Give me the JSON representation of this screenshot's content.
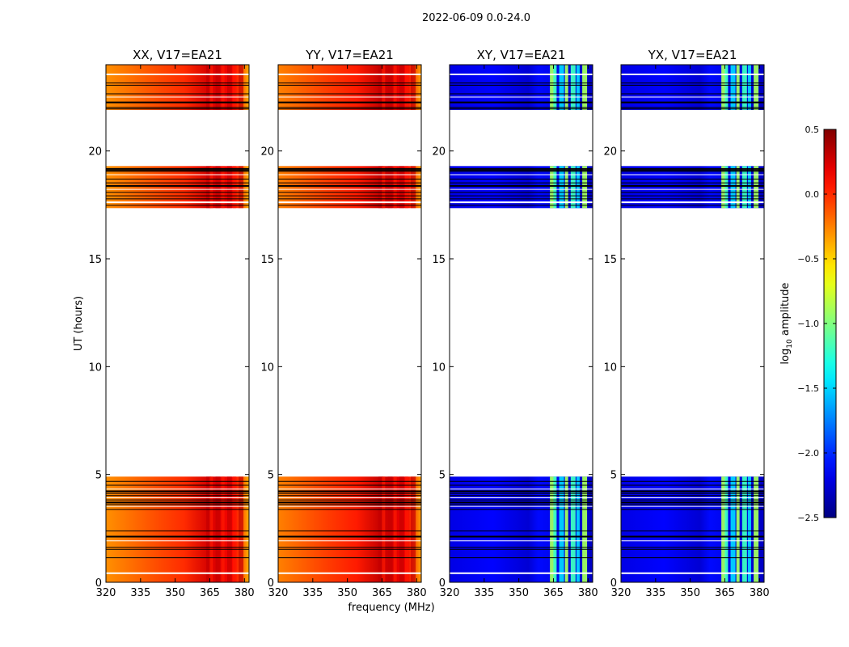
{
  "chart_data": {
    "type": "heatmap",
    "suptitle": "2022-06-09 0.0-24.0",
    "xlabel": "frequency (MHz)",
    "ylabel": "UT (hours)",
    "xlim": [
      320,
      382
    ],
    "ylim": [
      0,
      24
    ],
    "xticks": [
      320,
      335,
      350,
      365,
      380
    ],
    "yticks": [
      0,
      5,
      10,
      15,
      20
    ],
    "panels": [
      {
        "title": "XX, V17=EA21",
        "kind": "parallel",
        "level": 0.05
      },
      {
        "title": "YY, V17=EA21",
        "kind": "parallel",
        "level": 0.1
      },
      {
        "title": "XY, V17=EA21",
        "kind": "cross",
        "level": -2.2
      },
      {
        "title": "YX, V17=EA21",
        "kind": "cross",
        "level": -2.2
      }
    ],
    "data_bands_hours": [
      [
        0.0,
        4.9
      ],
      [
        17.35,
        19.3
      ],
      [
        21.9,
        24.0
      ]
    ],
    "gap_lines_hours": [
      0.42,
      1.14,
      1.53,
      1.62,
      1.92,
      2.12,
      2.38,
      3.38,
      3.52,
      3.6,
      3.7,
      3.82,
      3.92,
      4.02,
      4.12,
      4.22,
      4.32,
      4.5,
      4.68,
      17.48,
      17.62,
      17.78,
      17.92,
      18.08,
      18.22,
      18.38,
      18.52,
      18.7,
      18.9,
      19.05,
      19.12,
      19.18,
      21.15,
      21.95,
      22.02,
      22.25,
      22.5,
      22.65,
      23.05,
      23.15,
      23.55
    ],
    "rfi_columns_mhz": [
      364,
      365.5,
      368,
      370.5,
      373,
      375.5,
      378
    ],
    "colorbar": {
      "label": "log10 amplitude",
      "label_main": "log",
      "label_sub": "10",
      "label_tail": " amplitude",
      "vmin": -2.5,
      "vmax": 0.5,
      "ticks": [
        0.5,
        0.0,
        -0.5,
        -1.0,
        -1.5,
        -2.0,
        -2.5
      ],
      "tick_labels": [
        "0.5",
        "0.0",
        "−0.5",
        "−1.0",
        "−1.5",
        "−2.0",
        "−2.5"
      ],
      "colormap": "jet"
    }
  }
}
